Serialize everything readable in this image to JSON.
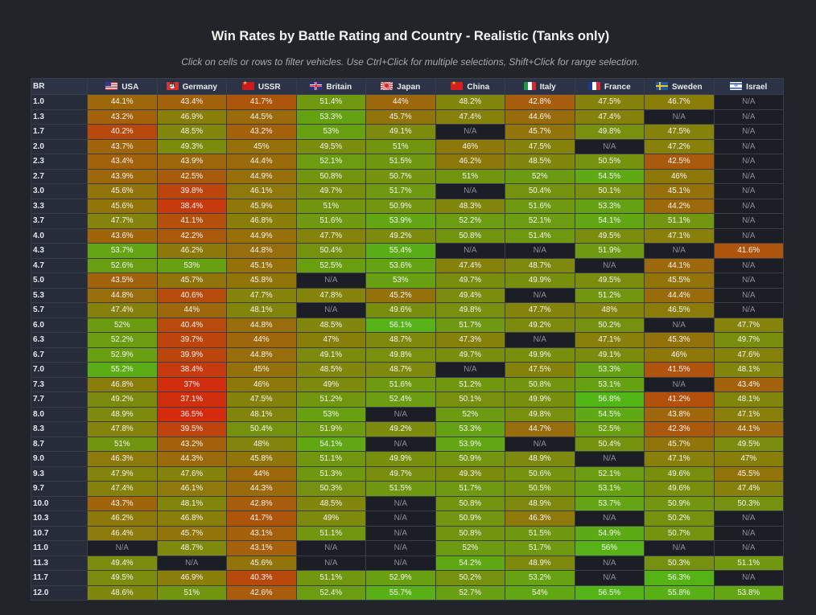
{
  "chart_data": {
    "type": "heatmap",
    "title": "Win Rates by Battle Rating and Country - Realistic (Tanks only)",
    "subtitle": "Click on cells or rows to filter vehicles. Use Ctrl+Click for multiple selections, Shift+Click for range selection.",
    "row_header_label": "BR",
    "na_label": "N/A",
    "value_suffix": "%",
    "color_scale": {
      "low": 36.5,
      "high": 56.8,
      "low_color": "#d42a0e",
      "mid_color": "#8a7d0a",
      "high_color": "#52b617"
    },
    "columns": [
      {
        "name": "USA",
        "flag_icon": "usa-flag-icon"
      },
      {
        "name": "Germany",
        "flag_icon": "germany-flag-icon"
      },
      {
        "name": "USSR",
        "flag_icon": "ussr-flag-icon"
      },
      {
        "name": "Britain",
        "flag_icon": "britain-flag-icon"
      },
      {
        "name": "Japan",
        "flag_icon": "japan-flag-icon"
      },
      {
        "name": "China",
        "flag_icon": "china-flag-icon"
      },
      {
        "name": "Italy",
        "flag_icon": "italy-flag-icon"
      },
      {
        "name": "France",
        "flag_icon": "france-flag-icon"
      },
      {
        "name": "Sweden",
        "flag_icon": "sweden-flag-icon"
      },
      {
        "name": "Israel",
        "flag_icon": "israel-flag-icon"
      }
    ],
    "rows": [
      {
        "br": "1.0",
        "values": [
          44.1,
          43.4,
          41.7,
          51.4,
          44,
          48.2,
          42.8,
          47.5,
          46.7,
          null
        ]
      },
      {
        "br": "1.3",
        "values": [
          43.2,
          46.9,
          44.5,
          53.3,
          45.7,
          47.4,
          44.6,
          47.4,
          null,
          null
        ]
      },
      {
        "br": "1.7",
        "values": [
          40.2,
          48.5,
          43.2,
          53,
          49.1,
          null,
          45.7,
          49.8,
          47.5,
          null
        ]
      },
      {
        "br": "2.0",
        "values": [
          43.7,
          49.3,
          45,
          49.5,
          51,
          46,
          47.5,
          null,
          47.2,
          null
        ]
      },
      {
        "br": "2.3",
        "values": [
          43.4,
          43.9,
          44.4,
          52.1,
          51.5,
          46.2,
          48.5,
          50.5,
          42.5,
          null
        ]
      },
      {
        "br": "2.7",
        "values": [
          43.9,
          42.5,
          44.9,
          50.8,
          50.7,
          51,
          52,
          54.5,
          46,
          null
        ]
      },
      {
        "br": "3.0",
        "values": [
          45.6,
          39.8,
          46.1,
          49.7,
          51.7,
          null,
          50.4,
          50.1,
          45.1,
          null
        ]
      },
      {
        "br": "3.3",
        "values": [
          45.6,
          38.4,
          45.9,
          51,
          50.9,
          48.3,
          51.6,
          53.3,
          44.2,
          null
        ]
      },
      {
        "br": "3.7",
        "values": [
          47.7,
          41.1,
          46.8,
          51.6,
          53.9,
          52.2,
          52.1,
          54.1,
          51.1,
          null
        ]
      },
      {
        "br": "4.0",
        "values": [
          43.6,
          42.2,
          44.9,
          47.7,
          49.2,
          50.8,
          51.4,
          49.5,
          47.1,
          null
        ]
      },
      {
        "br": "4.3",
        "values": [
          53.7,
          46.2,
          44.8,
          50.4,
          55.4,
          null,
          null,
          51.9,
          null,
          41.6
        ]
      },
      {
        "br": "4.7",
        "values": [
          52.6,
          53,
          45.1,
          52.5,
          53.6,
          47.4,
          48.7,
          null,
          44.1,
          null
        ]
      },
      {
        "br": "5.0",
        "values": [
          43.5,
          45.7,
          45.8,
          null,
          53,
          49.7,
          49.9,
          49.5,
          45.5,
          null
        ]
      },
      {
        "br": "5.3",
        "values": [
          44.8,
          40.6,
          47.7,
          47.8,
          45.2,
          49.4,
          null,
          51.2,
          44.4,
          null
        ]
      },
      {
        "br": "5.7",
        "values": [
          47.4,
          44,
          48.1,
          null,
          49.6,
          49.8,
          47.7,
          48,
          46.5,
          null
        ]
      },
      {
        "br": "6.0",
        "values": [
          52,
          40.4,
          44.8,
          48.5,
          56.1,
          51.7,
          49.2,
          50.2,
          null,
          47.7
        ]
      },
      {
        "br": "6.3",
        "values": [
          52.2,
          39.7,
          44,
          47,
          48.7,
          47.3,
          null,
          47.1,
          45.3,
          49.7
        ]
      },
      {
        "br": "6.7",
        "values": [
          52.9,
          39.9,
          44.8,
          49.1,
          49.8,
          49.7,
          49.9,
          49.1,
          46,
          47.6
        ]
      },
      {
        "br": "7.0",
        "values": [
          55.2,
          38.4,
          45,
          48.5,
          48.7,
          null,
          47.5,
          53.3,
          41.5,
          48.1
        ]
      },
      {
        "br": "7.3",
        "values": [
          46.8,
          37,
          46,
          49,
          51.6,
          51.2,
          50.8,
          53.1,
          null,
          43.4
        ]
      },
      {
        "br": "7.7",
        "values": [
          49.2,
          37.1,
          47.5,
          51.2,
          52.4,
          50.1,
          49.9,
          56.8,
          41.2,
          48.1
        ]
      },
      {
        "br": "8.0",
        "values": [
          48.9,
          36.5,
          48.1,
          53,
          null,
          52,
          49.8,
          54.5,
          43.8,
          47.1
        ]
      },
      {
        "br": "8.3",
        "values": [
          47.8,
          39.5,
          50.4,
          51.9,
          49.2,
          53.3,
          44.7,
          52.5,
          42.3,
          44.1
        ]
      },
      {
        "br": "8.7",
        "values": [
          51,
          43.2,
          48,
          54.1,
          null,
          53.9,
          null,
          50.4,
          45.7,
          49.5
        ]
      },
      {
        "br": "9.0",
        "values": [
          46.3,
          44.3,
          45.8,
          51.1,
          49.9,
          50.9,
          48.9,
          null,
          47.1,
          47
        ]
      },
      {
        "br": "9.3",
        "values": [
          47.9,
          47.6,
          44,
          51.3,
          49.7,
          49.3,
          50.6,
          52.1,
          49.6,
          45.5
        ]
      },
      {
        "br": "9.7",
        "values": [
          47.4,
          46.1,
          44.3,
          50.3,
          51.5,
          51.7,
          50.5,
          53.1,
          49.6,
          47.4
        ]
      },
      {
        "br": "10.0",
        "values": [
          43.7,
          48.1,
          42.8,
          48.5,
          null,
          50.8,
          48.9,
          53.7,
          50.9,
          50.3
        ]
      },
      {
        "br": "10.3",
        "values": [
          46.2,
          46.8,
          41.7,
          49,
          null,
          50.9,
          46.3,
          null,
          50.2,
          null
        ]
      },
      {
        "br": "10.7",
        "values": [
          46.4,
          45.7,
          43.1,
          51.1,
          null,
          50.8,
          51.5,
          54.9,
          50.7,
          null
        ]
      },
      {
        "br": "11.0",
        "values": [
          null,
          48.7,
          43.1,
          null,
          null,
          52,
          51.7,
          56,
          null,
          null
        ]
      },
      {
        "br": "11.3",
        "values": [
          49.4,
          null,
          45.6,
          null,
          null,
          54.2,
          48.9,
          null,
          50.3,
          51.1
        ]
      },
      {
        "br": "11.7",
        "values": [
          49.5,
          46.9,
          40.3,
          51.1,
          52.9,
          50.2,
          53.2,
          null,
          56.3,
          null
        ]
      },
      {
        "br": "12.0",
        "values": [
          48.6,
          51,
          42.6,
          52.4,
          55.7,
          52.7,
          54,
          56.5,
          55.8,
          53.8
        ]
      }
    ]
  }
}
